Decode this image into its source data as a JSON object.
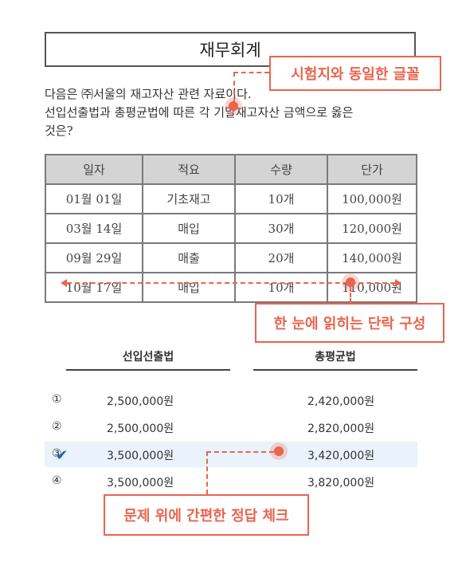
{
  "title": "재무회계",
  "question": {
    "line1": "다음은 ㈜서울의 재고자산 관련 자료이다.",
    "line2": "선입선출법과 총평균법에 따른 각 기말재고자산 금액으로 옳은",
    "line3": "것은?"
  },
  "table": {
    "headers": [
      "일자",
      "적요",
      "수량",
      "단가"
    ],
    "rows": [
      [
        "01월 01일",
        "기초재고",
        "10개",
        "100,000원"
      ],
      [
        "03월 14일",
        "매입",
        "30개",
        "120,000원"
      ],
      [
        "09월 29일",
        "매출",
        "20개",
        "140,000원"
      ],
      [
        "10월 17일",
        "매입",
        "10개",
        "110,000원"
      ]
    ]
  },
  "answers": {
    "col1_header": "선입선출법",
    "col2_header": "총평균법",
    "choices": [
      {
        "num": "①",
        "v1": "2,500,000원",
        "v2": "2,420,000원"
      },
      {
        "num": "②",
        "v1": "2,500,000원",
        "v2": "2,820,000원"
      },
      {
        "num": "③",
        "v1": "3,500,000원",
        "v2": "3,420,000원"
      },
      {
        "num": "④",
        "v1": "3,500,000원",
        "v2": "3,820,000원"
      }
    ],
    "selected_check": "✔"
  },
  "callouts": {
    "font": "시험지와 동일한 글꼴",
    "paragraph": "한 눈에 읽히는 단락 구성",
    "check": "문제 위에 간편한 정답 체크"
  },
  "colors": {
    "accent": "#e8654e",
    "selected_bg": "#eaf3fb",
    "check": "#1f5fb8"
  }
}
